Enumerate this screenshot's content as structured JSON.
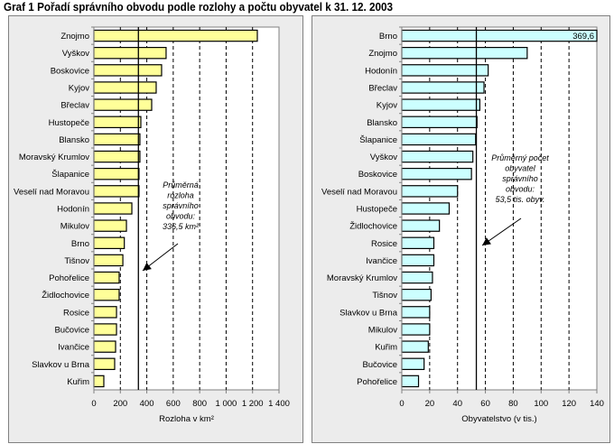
{
  "title": "Graf 1  Pořadí správního obvodu podle rozlohy a počtu obyvatel k 31. 12. 2003",
  "chart_data": [
    {
      "type": "bar",
      "orientation": "horizontal",
      "title": "",
      "xlabel": "Rozloha v km²",
      "ylabel": "",
      "xlim": [
        0,
        1400
      ],
      "xticks": [
        0,
        200,
        400,
        600,
        800,
        1000,
        1200,
        1400
      ],
      "xtick_labels": [
        "0",
        "200",
        "400",
        "600",
        "800",
        "1 000",
        "1 200",
        "1 400"
      ],
      "grid": "vertical dashed",
      "bar_color": "#ffff99",
      "categories": [
        "Znojmo",
        "Vyškov",
        "Boskovice",
        "Kyjov",
        "Břeclav",
        "Hustopeče",
        "Blansko",
        "Moravský Krumlov",
        "Šlapanice",
        "Veselí nad Moravou",
        "Hodonín",
        "Mikulov",
        "Brno",
        "Tišnov",
        "Pohořelice",
        "Židlochovice",
        "Rosice",
        "Bučovice",
        "Ivančice",
        "Slavkov u Brna",
        "Kuřim"
      ],
      "values": [
        1236,
        546,
        512,
        471,
        437,
        355,
        348,
        348,
        341,
        341,
        287,
        246,
        230,
        219,
        191,
        191,
        171,
        171,
        164,
        157,
        75
      ],
      "reference_line": {
        "value": 336.5,
        "label": "average"
      },
      "annotation": {
        "lines": [
          "Průměrná",
          "rozloha",
          "správního",
          "obvodu:",
          "336,5 km²"
        ]
      }
    },
    {
      "type": "bar",
      "orientation": "horizontal",
      "title": "",
      "xlabel": "Obyvatelstvo (v tis.)",
      "ylabel": "",
      "xlim": [
        0,
        140
      ],
      "xticks": [
        0,
        20,
        40,
        60,
        80,
        100,
        120,
        140
      ],
      "xtick_labels": [
        "0",
        "20",
        "40",
        "60",
        "80",
        "100",
        "120",
        "140"
      ],
      "grid": "vertical dashed",
      "bar_color": "#ccffff",
      "categories": [
        "Brno",
        "Znojmo",
        "Hodonín",
        "Břeclav",
        "Kyjov",
        "Blansko",
        "Šlapanice",
        "Vyškov",
        "Boskovice",
        "Veselí nad Moravou",
        "Hustopeče",
        "Židlochovice",
        "Rosice",
        "Ivančice",
        "Moravský Krumlov",
        "Tišnov",
        "Slavkov u Brna",
        "Mikulov",
        "Kuřim",
        "Bučovice",
        "Pohořelice"
      ],
      "values": [
        369.6,
        90,
        62,
        59,
        56,
        54,
        53,
        51,
        50,
        40,
        34,
        27,
        23,
        23,
        22,
        21,
        20,
        20,
        19,
        16,
        12
      ],
      "data_labels": [
        {
          "category": "Brno",
          "text": "369,6"
        }
      ],
      "reference_line": {
        "value": 53.5,
        "label": "average"
      },
      "annotation": {
        "lines": [
          "Průměrný počet",
          "obyvatel",
          "správního",
          "obvodu:",
          "53,5 tis. obyv."
        ]
      }
    }
  ]
}
